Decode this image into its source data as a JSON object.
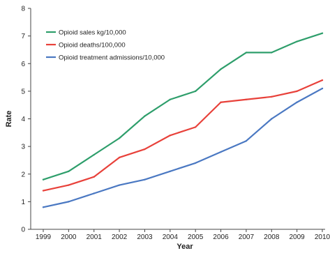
{
  "chart_data": {
    "type": "line",
    "xlabel": "Year",
    "ylabel": "Rate",
    "ylim": [
      0,
      8
    ],
    "yticks": [
      0,
      1,
      2,
      3,
      4,
      5,
      6,
      7,
      8
    ],
    "categories": [
      "1999",
      "2000",
      "2001",
      "2002",
      "2003",
      "2004",
      "2005",
      "2006",
      "2007",
      "2008",
      "2009",
      "2010"
    ],
    "x_tick_labels": [
      "1999",
      "2000",
      "2001",
      "2002",
      "2003",
      "2004",
      "2005",
      "2006",
      "2007",
      "2008",
      "2009",
      "2010"
    ],
    "grid": false,
    "legend_position": "top-left",
    "series": [
      {
        "name": "Opioid sales kg/10,000",
        "color": "#2e9e6b",
        "values": [
          1.8,
          2.1,
          2.7,
          3.3,
          4.1,
          4.7,
          5.0,
          5.8,
          6.4,
          6.4,
          6.8,
          7.1
        ]
      },
      {
        "name": "Opioid deaths/100,000",
        "color": "#e8413a",
        "values": [
          1.4,
          1.6,
          1.9,
          2.6,
          2.9,
          3.4,
          3.7,
          4.6,
          4.7,
          4.8,
          5.0,
          5.4
        ]
      },
      {
        "name": "Opioid treatment admissions/10,000",
        "color": "#4a78c2",
        "values": [
          0.8,
          1.0,
          1.3,
          1.6,
          1.8,
          2.1,
          2.4,
          2.8,
          3.2,
          4.0,
          4.6,
          5.1
        ]
      }
    ]
  }
}
